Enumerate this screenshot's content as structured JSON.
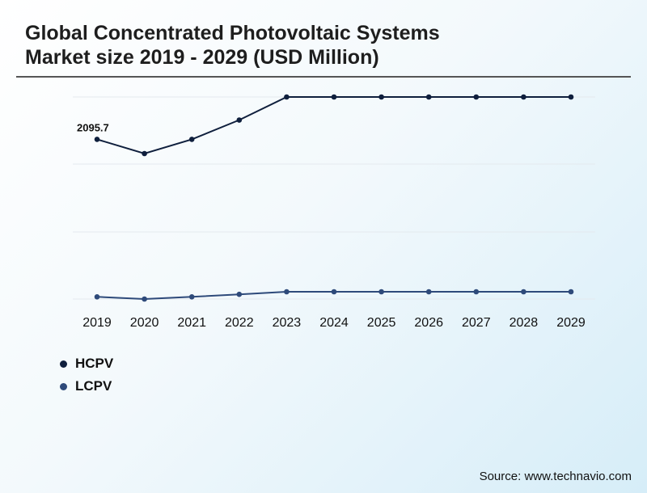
{
  "title": {
    "line1": "Global Concentrated Photovoltaic Systems",
    "line2": "Market size 2019 - 2029 (USD Million)"
  },
  "source": "Source: www.technavio.com",
  "chart_data": {
    "type": "line",
    "title": "Global Concentrated Photovoltaic Systems Market size 2019 - 2029 (USD Million)",
    "xlabel": "",
    "ylabel": "",
    "categories": [
      "2019",
      "2020",
      "2021",
      "2022",
      "2023",
      "2024",
      "2025",
      "2026",
      "2027",
      "2028",
      "2029"
    ],
    "ylim": [
      0,
      2500
    ],
    "grid": true,
    "legend": "bottom-left",
    "series": [
      {
        "name": "HCPV",
        "color": "#0f1f3d",
        "values": [
          2095.7,
          1960,
          2095.7,
          2280,
          2500,
          2500,
          2500,
          2500,
          2500,
          2500,
          2500
        ],
        "data_labels": [
          "2095.7",
          "",
          "",
          "",
          "",
          "",
          "",
          "",
          "",
          "",
          ""
        ]
      },
      {
        "name": "LCPV",
        "color": "#2e4a7a",
        "values": [
          27,
          5,
          27,
          52,
          78,
          78,
          78,
          78,
          78,
          78,
          78
        ],
        "data_labels": [
          "",
          "",
          "",
          "",
          "",
          "",
          "",
          "",
          "",
          "",
          ""
        ]
      }
    ]
  }
}
